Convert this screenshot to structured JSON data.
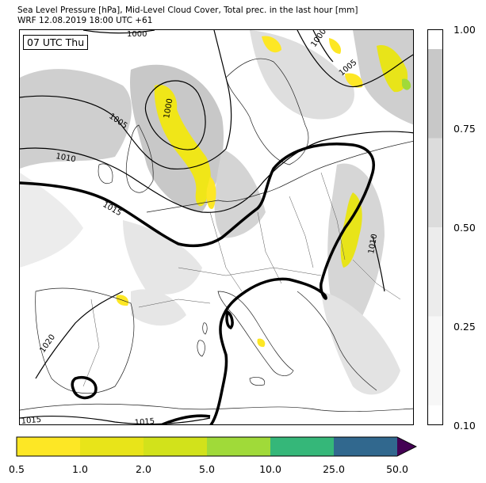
{
  "title": {
    "line1": "Sea Level Pressure [hPa], Mid-Level Cloud Cover, Total prec. in the last hour [mm]",
    "line2": "WRF 12.08.2019 18:00 UTC +61"
  },
  "time_label": "07 UTC Thu",
  "isobar_labels": [
    "1000",
    "1000",
    "1000",
    "1005",
    "1005",
    "1010",
    "1010",
    "1015",
    "1015",
    "1015",
    "1020"
  ],
  "cloud_colorbar": {
    "ticks": [
      "0.10",
      "0.25",
      "0.50",
      "0.75",
      "1.00"
    ],
    "colors": [
      "#f7f7f7",
      "#ececec",
      "#dcdcdc",
      "#c8c8c8"
    ]
  },
  "precip_colorbar": {
    "ticks": [
      "0.5",
      "1.0",
      "2.0",
      "5.0",
      "10.0",
      "25.0",
      "50.0"
    ],
    "colors": [
      "#fde725",
      "#e8e419",
      "#d2e21b",
      "#a0da39",
      "#35b779",
      "#31688e",
      "#440154"
    ]
  }
}
